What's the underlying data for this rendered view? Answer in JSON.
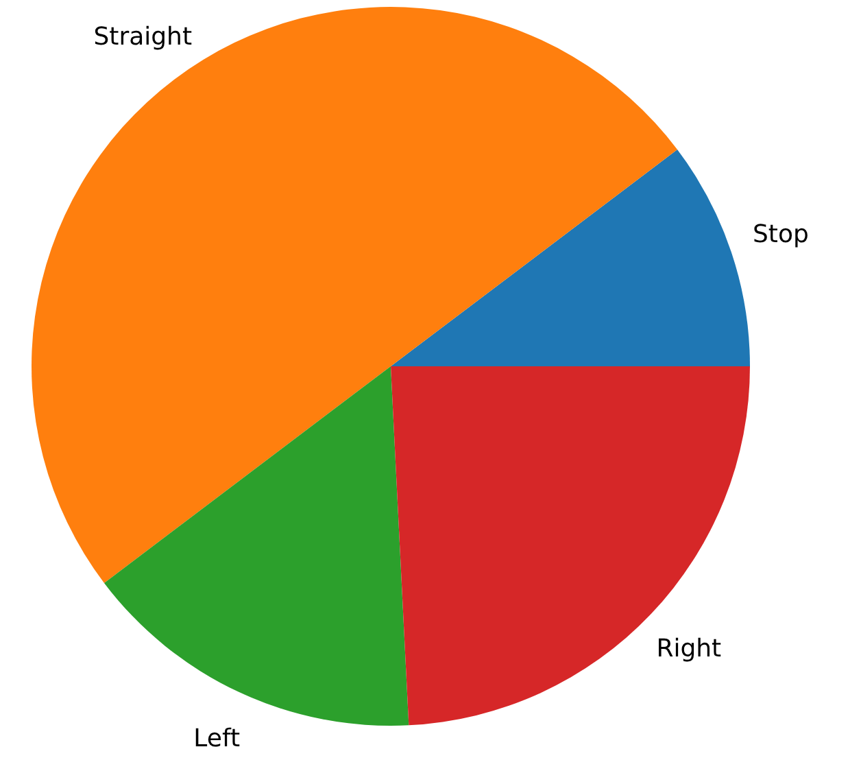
{
  "chart_data": {
    "type": "pie",
    "categories": [
      "Stop",
      "Straight",
      "Left",
      "Right"
    ],
    "values": [
      10.3,
      50,
      15.5,
      24.2
    ],
    "colors": [
      "#1f77b4",
      "#ff7f0e",
      "#2ca02c",
      "#d62728"
    ]
  }
}
